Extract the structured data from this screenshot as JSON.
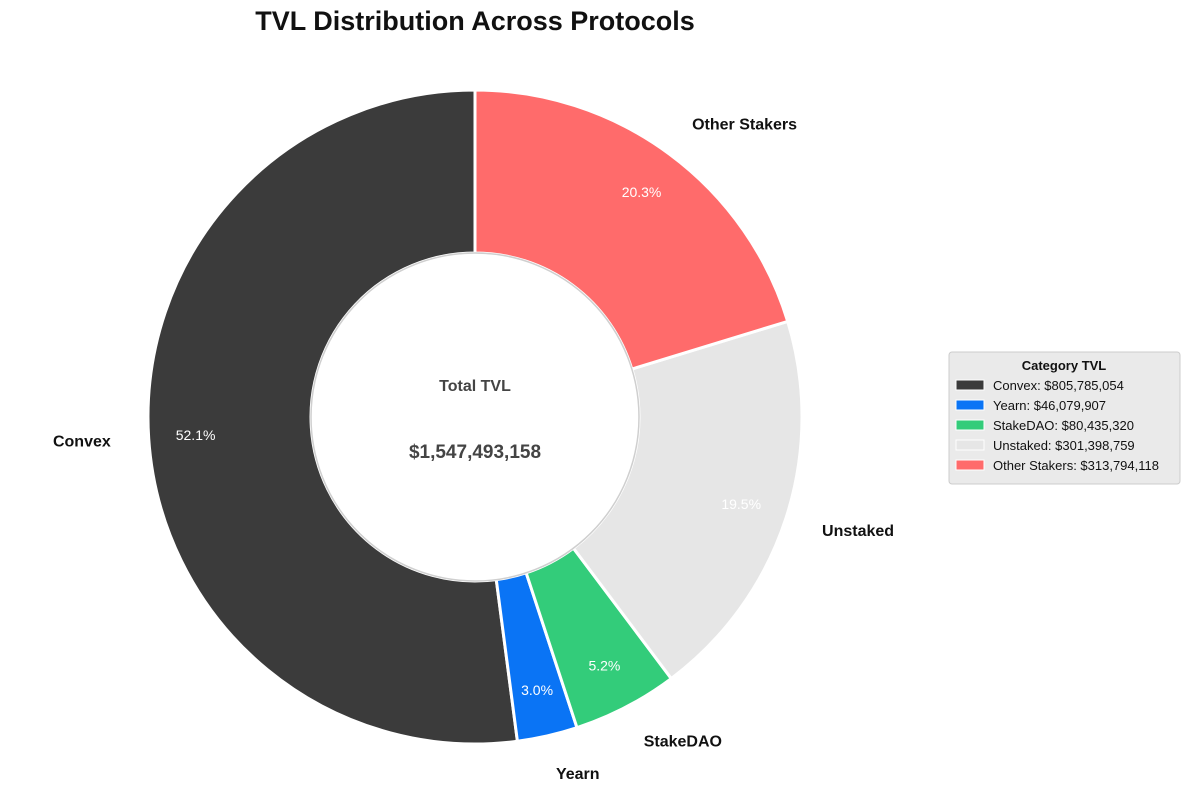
{
  "chart_data": {
    "type": "pie",
    "title": "TVL Distribution Across Protocols",
    "categories": [
      "Convex",
      "Yearn",
      "StakeDAO",
      "Unstaked",
      "Other Stakers"
    ],
    "values": [
      805785054,
      46079907,
      80435320,
      301398759,
      313794118
    ],
    "percent_labels": [
      "52.1%",
      "3.0%",
      "5.2%",
      "19.5%",
      "20.3%"
    ],
    "colors": [
      "#3b3b3b",
      "#0a74f5",
      "#33cc7a",
      "#e6e6e6",
      "#ff6b6b"
    ],
    "donut": true,
    "start_angle_deg": 90,
    "direction": "counterclockwise",
    "center_title": "Total TVL",
    "center_value": "$1,547,493,158",
    "legend": {
      "title": "Category TVL",
      "placement": "right",
      "entries": [
        "Convex: $805,785,054",
        "Yearn: $46,079,907",
        "StakeDAO: $80,435,320",
        "Unstaked: $301,398,759",
        "Other Stakers: $313,794,118"
      ]
    }
  }
}
